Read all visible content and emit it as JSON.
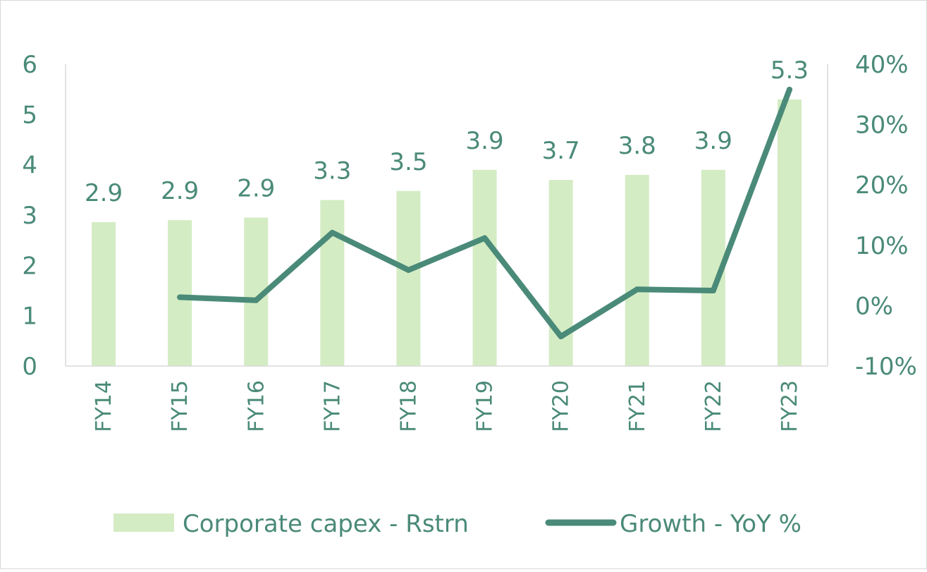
{
  "chart_data": {
    "type": "bar",
    "categories": [
      "FY14",
      "FY15",
      "FY16",
      "FY17",
      "FY18",
      "FY19",
      "FY20",
      "FY21",
      "FY22",
      "FY23"
    ],
    "series": [
      {
        "name": "Corporate capex - Rstrn",
        "type": "bar",
        "axis": "left",
        "values": [
          2.86,
          2.9,
          2.95,
          3.3,
          3.48,
          3.9,
          3.7,
          3.8,
          3.9,
          5.3
        ],
        "labels": [
          "2.9",
          "2.9",
          "2.9",
          "3.3",
          "3.5",
          "3.9",
          "3.7",
          "3.8",
          "3.9",
          "5.3"
        ],
        "color": "#d4ecc4"
      },
      {
        "name": "Growth - YoY %",
        "type": "line",
        "axis": "right",
        "values": [
          null,
          1.4,
          0.9,
          12.1,
          5.9,
          11.2,
          -5.1,
          2.7,
          2.5,
          35.8
        ],
        "color": "#4a8a78"
      }
    ],
    "left_axis": {
      "min": 0,
      "max": 6,
      "ticks": [
        "0",
        "1",
        "2",
        "3",
        "4",
        "5",
        "6"
      ]
    },
    "right_axis": {
      "min": -10,
      "max": 40,
      "ticks": [
        "-10%",
        "0%",
        "10%",
        "20%",
        "30%",
        "40%"
      ]
    },
    "grid": false,
    "legend": "bottom"
  }
}
